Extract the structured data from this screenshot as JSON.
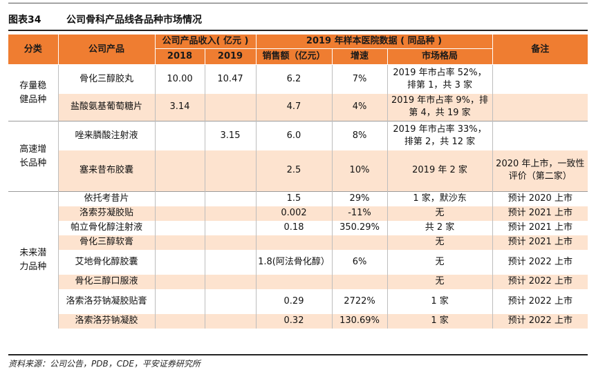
{
  "figure": {
    "number": "图表34",
    "title": "公司骨科产品线各品种市场情况"
  },
  "header": {
    "category": "分类",
    "product": "公司产品",
    "revenue_group": "公司产品收入( 亿元 )",
    "year_2018": "2018",
    "year_2019": "2019",
    "hospital_group": "2019 年样本医院数据 ( 同品种 )",
    "sales": "销售额（亿元）",
    "growth": "增速",
    "market": "市场格局",
    "note": "备注"
  },
  "groups": [
    {
      "label": "存量稳健品种",
      "rows": [
        {
          "product": "骨化三醇胶丸",
          "r2018": "10.00",
          "r2019": "10.47",
          "sales": "6.2",
          "growth": "7%",
          "market": "2019 年市占率 52%，排第 1，共 3 家",
          "note": ""
        },
        {
          "product": "盐酸氨基葡萄糖片",
          "r2018": "3.14",
          "r2019": "",
          "sales": "4.7",
          "growth": "4%",
          "market": "2019 年市占率 9%，排第 4，共 19 家",
          "note": ""
        }
      ]
    },
    {
      "label": "高速增长品种",
      "rows": [
        {
          "product": "唑来膦酸注射液",
          "r2018": "",
          "r2019": "3.15",
          "sales": "6.0",
          "growth": "8%",
          "market": "2019 年市占率 33%，排第 2，共 12 家",
          "note": ""
        },
        {
          "product": "塞来昔布胶囊",
          "r2018": "",
          "r2019": "",
          "sales": "2.5",
          "growth": "10%",
          "market": "2019 年 2 家",
          "note": "2020 年上市，一致性评价（第二家）"
        }
      ]
    },
    {
      "label": "未来潜力品种",
      "rows": [
        {
          "product": "依托考昔片",
          "r2018": "",
          "r2019": "",
          "sales": "1.5",
          "growth": "29%",
          "market": "1 家，默沙东",
          "note": "预计 2020 上市"
        },
        {
          "product": "洛索芬凝胶贴",
          "r2018": "",
          "r2019": "",
          "sales": "0.002",
          "growth": "-11%",
          "market": "无",
          "note": "预计 2021 上市"
        },
        {
          "product": "帕立骨化醇注射液",
          "r2018": "",
          "r2019": "",
          "sales": "0.18",
          "growth": "350.29%",
          "market": "共 2 家",
          "note": "预计 2021 上市"
        },
        {
          "product": "骨化三醇软膏",
          "r2018": "",
          "r2019": "",
          "sales": "",
          "growth": "",
          "market": "无",
          "note": "预计 2021 上市"
        },
        {
          "product": "艾地骨化醇胶囊",
          "r2018": "",
          "r2019": "",
          "sales": "1.8(阿法骨化醇）",
          "growth": "6%",
          "market": "无",
          "note": "预计 2022 上市"
        },
        {
          "product": "骨化三醇口服液",
          "r2018": "",
          "r2019": "",
          "sales": "",
          "growth": "",
          "market": "无",
          "note": "预计 2022 上市"
        },
        {
          "product": "洛索洛芬钠凝胶贴膏",
          "r2018": "",
          "r2019": "",
          "sales": "0.29",
          "growth": "2722%",
          "market": "1 家",
          "note": "预计 2022 上市"
        },
        {
          "product": "洛索洛芬钠凝胶",
          "r2018": "",
          "r2019": "",
          "sales": "0.32",
          "growth": "130.69%",
          "market": "1 家",
          "note": "预计 2022 上市"
        }
      ]
    }
  ],
  "source": "资料来源：公司公告，PDB，CDE，平安证券研究所",
  "colors": {
    "header_bg": "#ef7d31",
    "shade_bg": "#fde3cf"
  }
}
